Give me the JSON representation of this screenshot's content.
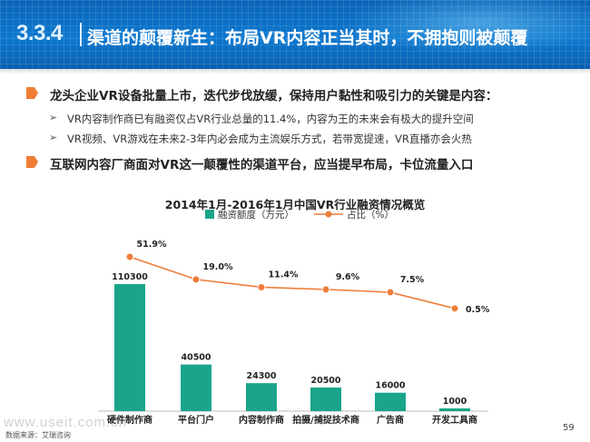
{
  "header": {
    "section_number": "3.3.4",
    "title": "渠道的颠覆新生：布局VR内容正当其时，不拥抱则被颠覆"
  },
  "bullets": [
    "龙头企业VR设备批量上市，迭代步伐放缓，保持用户黏性和吸引力的关键是内容：",
    "互联网内容厂商面对VR这一颠覆性的渠道平台，应当提早布局，卡位流量入口"
  ],
  "sub_bullets": [
    "VR内容制作商已有融资仅占VR行业总量的11.4%，内容为王的未来会有极大的提升空间",
    "VR视频、VR游戏在未来2-3年内必会成为主流娱乐方式，若带宽提速，VR直播亦会火热"
  ],
  "sub_arrow": "➢",
  "colors": {
    "bar": "#1aa58a",
    "line": "#ee7d3a",
    "header": "#0c78cf",
    "bullet_icon": "#f07d35"
  },
  "chart_data": {
    "type": "bar",
    "title": "2014年1月-2016年1月中国VR行业融资情况概览",
    "categories": [
      "硬件制作商",
      "平台门户",
      "内容制作商",
      "拍摄/捕捉技术商",
      "广告商",
      "开发工具商"
    ],
    "series": [
      {
        "name": "融资额度（万元）",
        "type": "bar",
        "values": [
          110300,
          40500,
          24300,
          20500,
          16000,
          1000
        ]
      },
      {
        "name": "占比（%）",
        "type": "line",
        "values": [
          51.9,
          19.0,
          11.4,
          9.6,
          7.5,
          0.5
        ],
        "labels": [
          "51.9%",
          "19.0%",
          "11.4%",
          "9.6%",
          "7.5%",
          "0.5%"
        ]
      }
    ],
    "legend_position": "top-center",
    "grid": false
  },
  "footer": {
    "source": "数据来源：艾瑞咨询",
    "watermark": "www.useit.com.cn",
    "page_number": "59"
  }
}
